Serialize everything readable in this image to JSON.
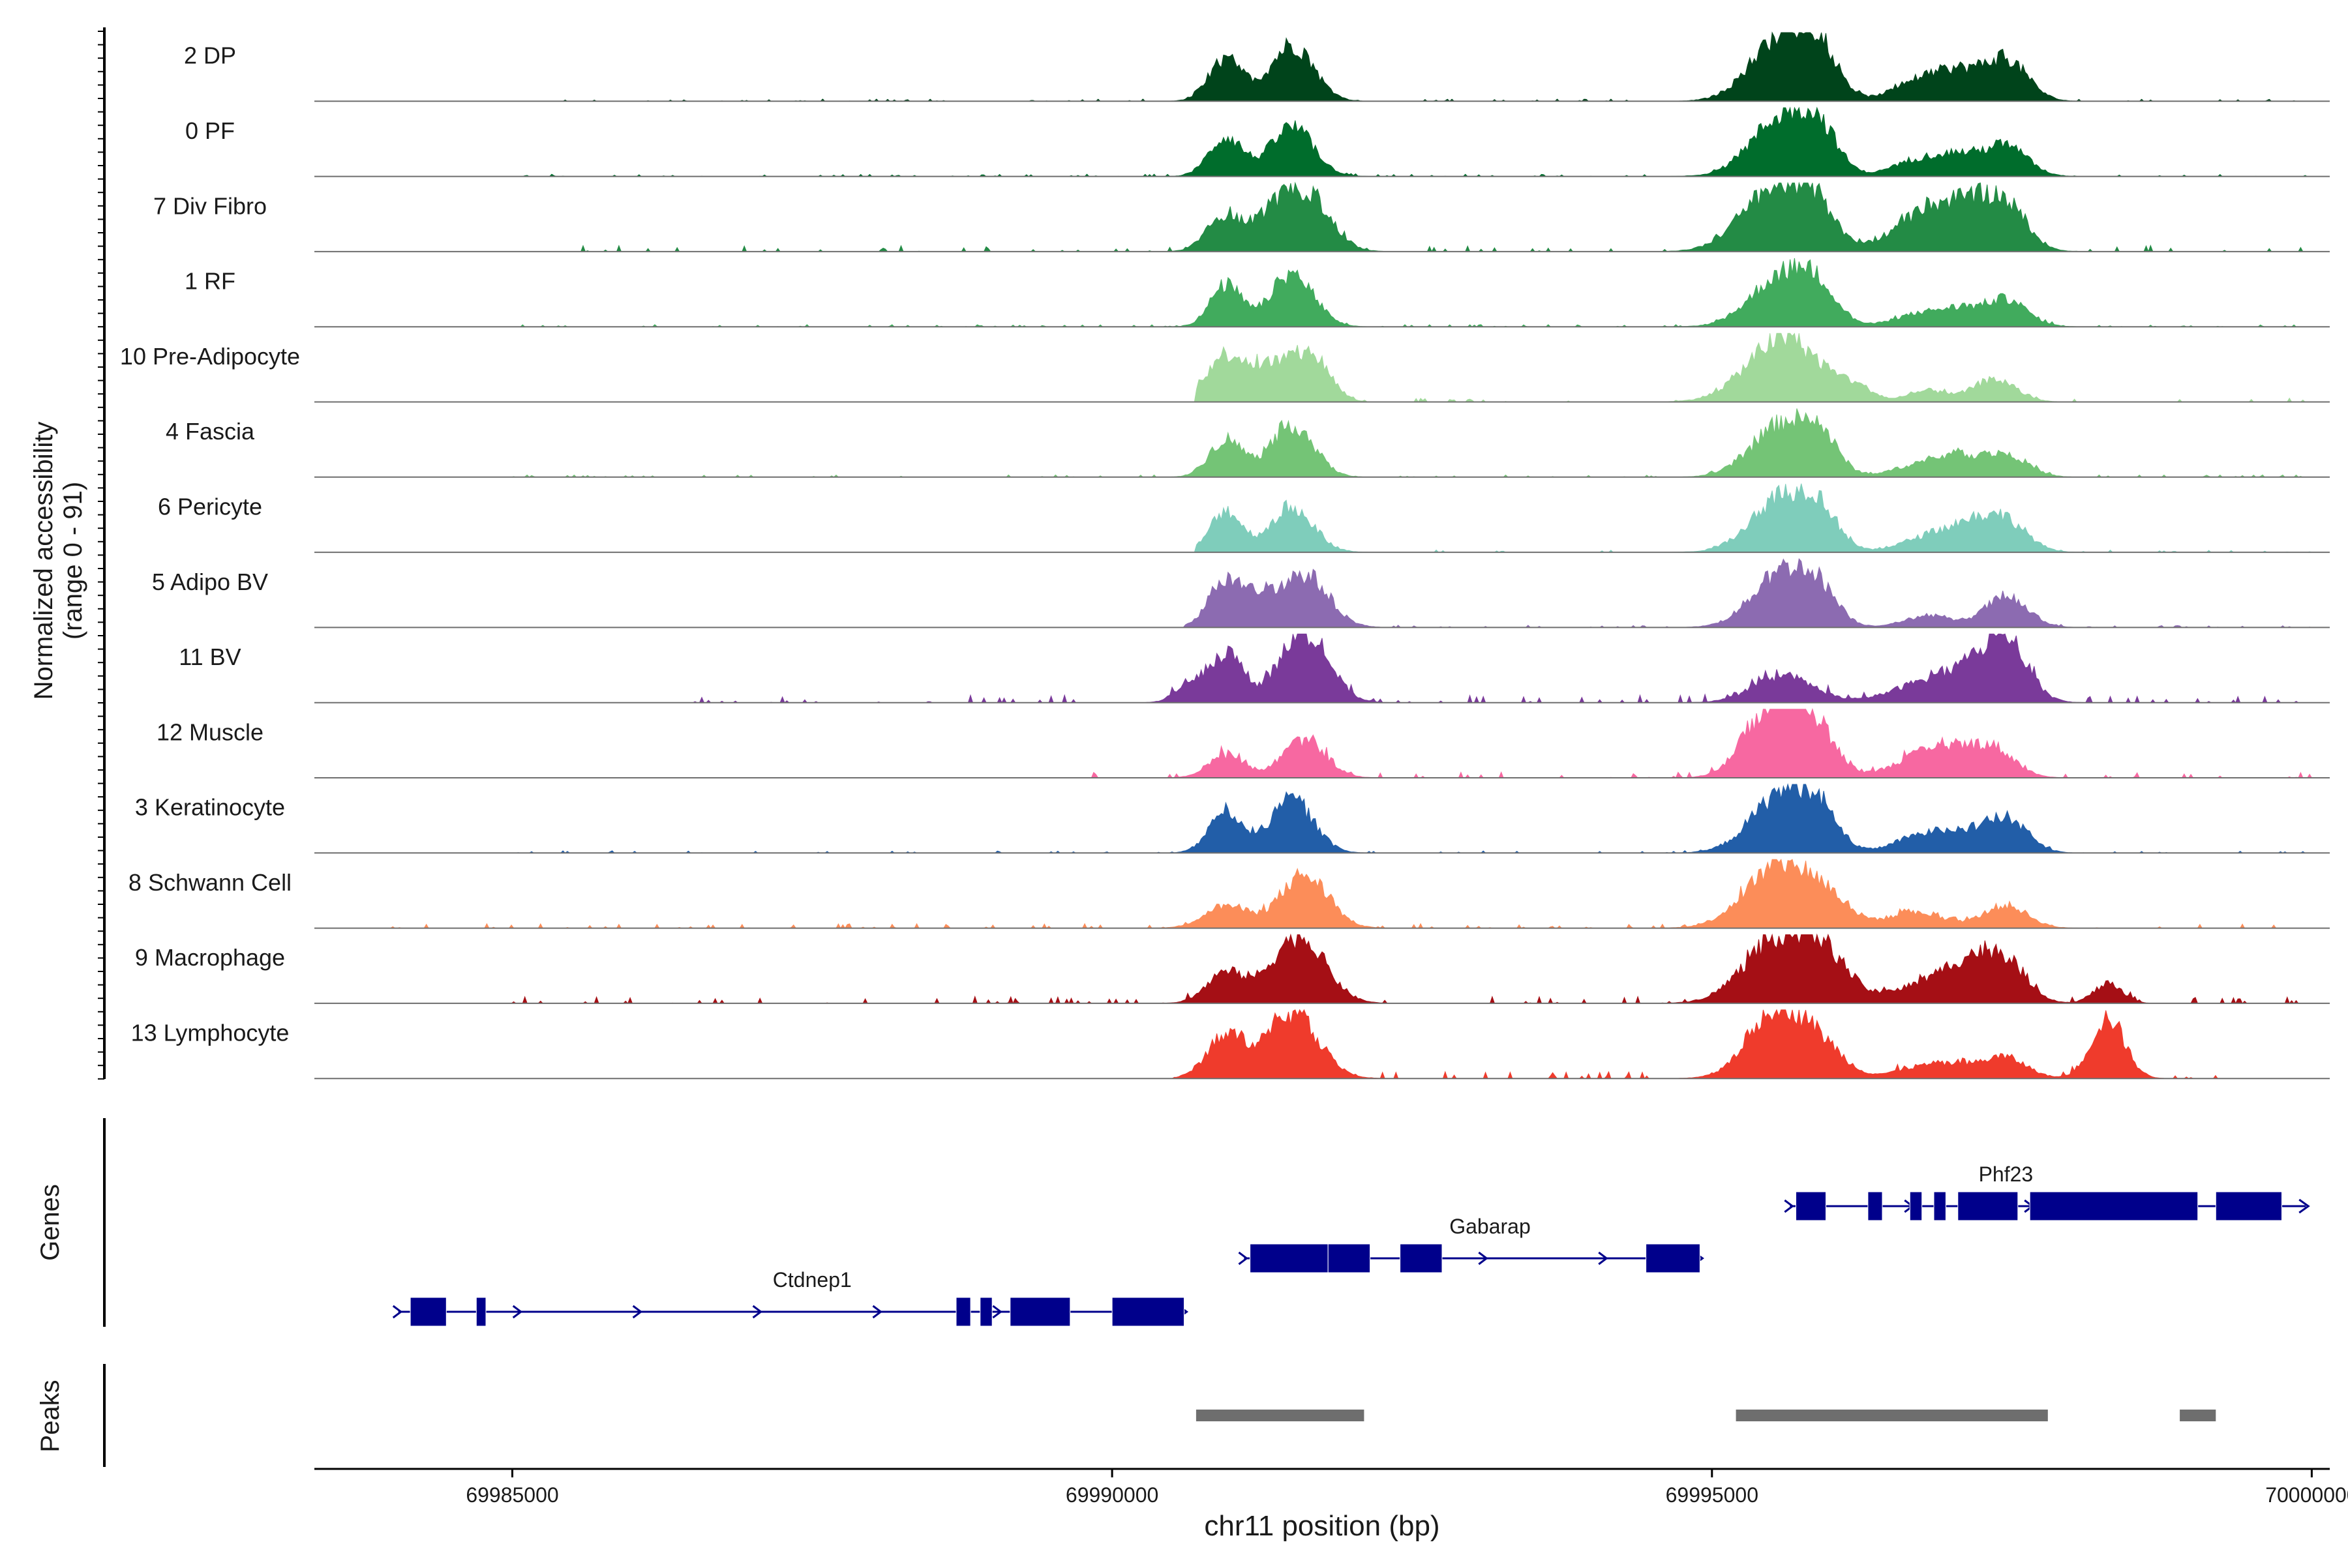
{
  "chart_data": {
    "type": "area",
    "title": "",
    "ylabel_line1": "Normalized accessibility",
    "ylabel_line2": "(range 0 - 91)",
    "ylim": [
      0,
      91
    ],
    "xlabel": "chr11 position (bp)",
    "xlim": [
      69983350,
      70000150
    ],
    "xticks": [
      69985000,
      69990000,
      69995000,
      70000000
    ],
    "xtick_labels": [
      "69985000",
      "69990000",
      "69995000",
      "70000000"
    ],
    "tracks": [
      {
        "name": "2 DP",
        "color": "#00441b",
        "peaks": [
          [
            69990950,
            55,
            140
          ],
          [
            69991500,
            75,
            180
          ],
          [
            69995600,
            90,
            260
          ],
          [
            69995900,
            45,
            150
          ],
          [
            69996700,
            25,
            200
          ],
          [
            69997050,
            35,
            180
          ],
          [
            69997450,
            55,
            180
          ]
        ],
        "noise": 3,
        "range": [
          69985000,
          70000000
        ]
      },
      {
        "name": "0 PF",
        "color": "#006d2c",
        "peaks": [
          [
            69990950,
            52,
            140
          ],
          [
            69991500,
            65,
            180
          ],
          [
            69995600,
            80,
            260
          ],
          [
            69995900,
            40,
            150
          ],
          [
            69996700,
            20,
            200
          ],
          [
            69997050,
            25,
            180
          ],
          [
            69997450,
            40,
            180
          ]
        ],
        "noise": 3,
        "range": [
          69985000,
          70000000
        ]
      },
      {
        "name": "7 Div Fibro",
        "color": "#238b45",
        "peaks": [
          [
            69990950,
            50,
            150
          ],
          [
            69991300,
            30,
            120
          ],
          [
            69991600,
            82,
            200
          ],
          [
            69995500,
            78,
            270
          ],
          [
            69995850,
            50,
            170
          ],
          [
            69996700,
            35,
            250
          ],
          [
            69997100,
            55,
            250
          ],
          [
            69997450,
            50,
            180
          ]
        ],
        "noise": 8,
        "range": [
          69985500,
          70000000
        ]
      },
      {
        "name": "1 RF",
        "color": "#41ab5d",
        "peaks": [
          [
            69990950,
            55,
            130
          ],
          [
            69991500,
            70,
            180
          ],
          [
            69995600,
            70,
            260
          ],
          [
            69995900,
            30,
            150
          ],
          [
            69996700,
            15,
            200
          ],
          [
            69997050,
            20,
            180
          ],
          [
            69997450,
            35,
            180
          ]
        ],
        "noise": 3,
        "range": [
          69985000,
          70000000
        ]
      },
      {
        "name": "10 Pre-Adipocyte",
        "color": "#a1d99b",
        "peaks": [
          [
            69990950,
            60,
            170
          ],
          [
            69991400,
            50,
            200
          ],
          [
            69991700,
            45,
            140
          ],
          [
            69995600,
            85,
            300
          ],
          [
            69996200,
            15,
            150
          ],
          [
            69996800,
            15,
            150
          ],
          [
            69997350,
            30,
            180
          ]
        ],
        "noise": 5,
        "range": [
          69990700,
          70000000
        ]
      },
      {
        "name": "4 Fascia",
        "color": "#74c476",
        "peaks": [
          [
            69990950,
            50,
            140
          ],
          [
            69991500,
            70,
            180
          ],
          [
            69995600,
            70,
            260
          ],
          [
            69995900,
            35,
            150
          ],
          [
            69996700,
            15,
            200
          ],
          [
            69997050,
            25,
            180
          ],
          [
            69997450,
            30,
            180
          ]
        ],
        "noise": 3,
        "range": [
          69985000,
          70000000
        ]
      },
      {
        "name": "6 Pericyte",
        "color": "#7fcdbb",
        "peaks": [
          [
            69990950,
            55,
            130
          ],
          [
            69991500,
            60,
            180
          ],
          [
            69995600,
            75,
            260
          ],
          [
            69995900,
            35,
            150
          ],
          [
            69996800,
            20,
            220
          ],
          [
            69997150,
            30,
            180
          ],
          [
            69997450,
            40,
            180
          ]
        ],
        "noise": 3,
        "range": [
          69990700,
          70000000
        ]
      },
      {
        "name": "5 Adipo BV",
        "color": "#8c6bb1",
        "peaks": [
          [
            69990950,
            65,
            140
          ],
          [
            69991250,
            30,
            120
          ],
          [
            69991600,
            70,
            200
          ],
          [
            69995600,
            75,
            250
          ],
          [
            69995900,
            30,
            150
          ],
          [
            69996800,
            15,
            200
          ],
          [
            69997450,
            40,
            180
          ]
        ],
        "noise": 3,
        "range": [
          69990600,
          70000000
        ]
      },
      {
        "name": "11 BV",
        "color": "#7a3a9a",
        "peaks": [
          [
            69990950,
            65,
            140
          ],
          [
            69990650,
            25,
            120
          ],
          [
            69991600,
            95,
            200
          ],
          [
            69995600,
            35,
            250
          ],
          [
            69996800,
            25,
            300
          ],
          [
            69997200,
            30,
            250
          ],
          [
            69997450,
            70,
            180
          ]
        ],
        "noise": 10,
        "range": [
          69986500,
          70000000
        ]
      },
      {
        "name": "12 Muscle",
        "color": "#f768a1",
        "peaks": [
          [
            69990950,
            30,
            150
          ],
          [
            69991600,
            50,
            180
          ],
          [
            69995500,
            95,
            220
          ],
          [
            69995850,
            60,
            180
          ],
          [
            69996900,
            40,
            300
          ],
          [
            69997350,
            30,
            180
          ]
        ],
        "noise": 8,
        "range": [
          69989800,
          70000000
        ]
      },
      {
        "name": "3 Keratinocyte",
        "color": "#225ea8",
        "peaks": [
          [
            69990950,
            55,
            140
          ],
          [
            69991500,
            70,
            180
          ],
          [
            69995600,
            80,
            260
          ],
          [
            69995900,
            35,
            150
          ],
          [
            69996700,
            20,
            200
          ],
          [
            69997050,
            25,
            180
          ],
          [
            69997450,
            45,
            180
          ]
        ],
        "noise": 3,
        "range": [
          69985000,
          70000000
        ]
      },
      {
        "name": "8 Schwann Cell",
        "color": "#fc8d59",
        "peaks": [
          [
            69990950,
            30,
            180
          ],
          [
            69991600,
            70,
            200
          ],
          [
            69995550,
            80,
            280
          ],
          [
            69995950,
            30,
            200
          ],
          [
            69996700,
            20,
            250
          ],
          [
            69997450,
            30,
            180
          ]
        ],
        "noise": 6,
        "range": [
          69984000,
          70000000
        ]
      },
      {
        "name": "9 Macrophage",
        "color": "#a50f15",
        "peaks": [
          [
            69990950,
            40,
            160
          ],
          [
            69991550,
            90,
            220
          ],
          [
            69995550,
            85,
            280
          ],
          [
            69995950,
            50,
            200
          ],
          [
            69996800,
            25,
            300
          ],
          [
            69997150,
            40,
            200
          ],
          [
            69997450,
            50,
            180
          ],
          [
            69998300,
            25,
            120
          ]
        ],
        "noise": 9,
        "range": [
          69985000,
          70000000
        ]
      },
      {
        "name": "13 Lymphocyte",
        "color": "#ef3b2c",
        "peaks": [
          [
            69990950,
            55,
            160
          ],
          [
            69991500,
            85,
            220
          ],
          [
            69995550,
            95,
            240
          ],
          [
            69995950,
            30,
            180
          ],
          [
            69996900,
            20,
            300
          ],
          [
            69997450,
            25,
            180
          ],
          [
            69998300,
            80,
            140
          ]
        ],
        "noise": 9,
        "range": [
          69990500,
          69999200
        ]
      }
    ],
    "genes": [
      {
        "name": "Ctdnep1",
        "start": 69984050,
        "end": 69990600,
        "row": 0,
        "strand": "+",
        "exons": [
          [
            69984150,
            69984450
          ],
          [
            69984700,
            69984780
          ],
          [
            69988700,
            69988820
          ],
          [
            69988900,
            69989000
          ],
          [
            69989150,
            69989650
          ],
          [
            69990000,
            69990600
          ]
        ]
      },
      {
        "name": "Gabarap",
        "start": 69991100,
        "end": 69994900,
        "row": 1,
        "strand": "+",
        "exons": [
          [
            69991150,
            69991800
          ],
          [
            69991800,
            69992150
          ],
          [
            69992400,
            69992750
          ],
          [
            69994450,
            69994900
          ]
        ]
      },
      {
        "name": "Phf23",
        "start": 69995650,
        "end": 69999950,
        "row": 2,
        "strand": "+",
        "exons": [
          [
            69995700,
            69995950
          ],
          [
            69996300,
            69996420
          ],
          [
            69996650,
            69996750
          ],
          [
            69996850,
            69996950
          ],
          [
            69997050,
            69997550
          ],
          [
            69997650,
            69999050
          ],
          [
            69999200,
            69999750
          ]
        ]
      }
    ],
    "gene_track_label": "Genes",
    "peak_track_label": "Peaks",
    "peaks_bed": [
      [
        69990700,
        69992100
      ],
      [
        69995200,
        69997800
      ],
      [
        69998900,
        69999200
      ]
    ]
  }
}
